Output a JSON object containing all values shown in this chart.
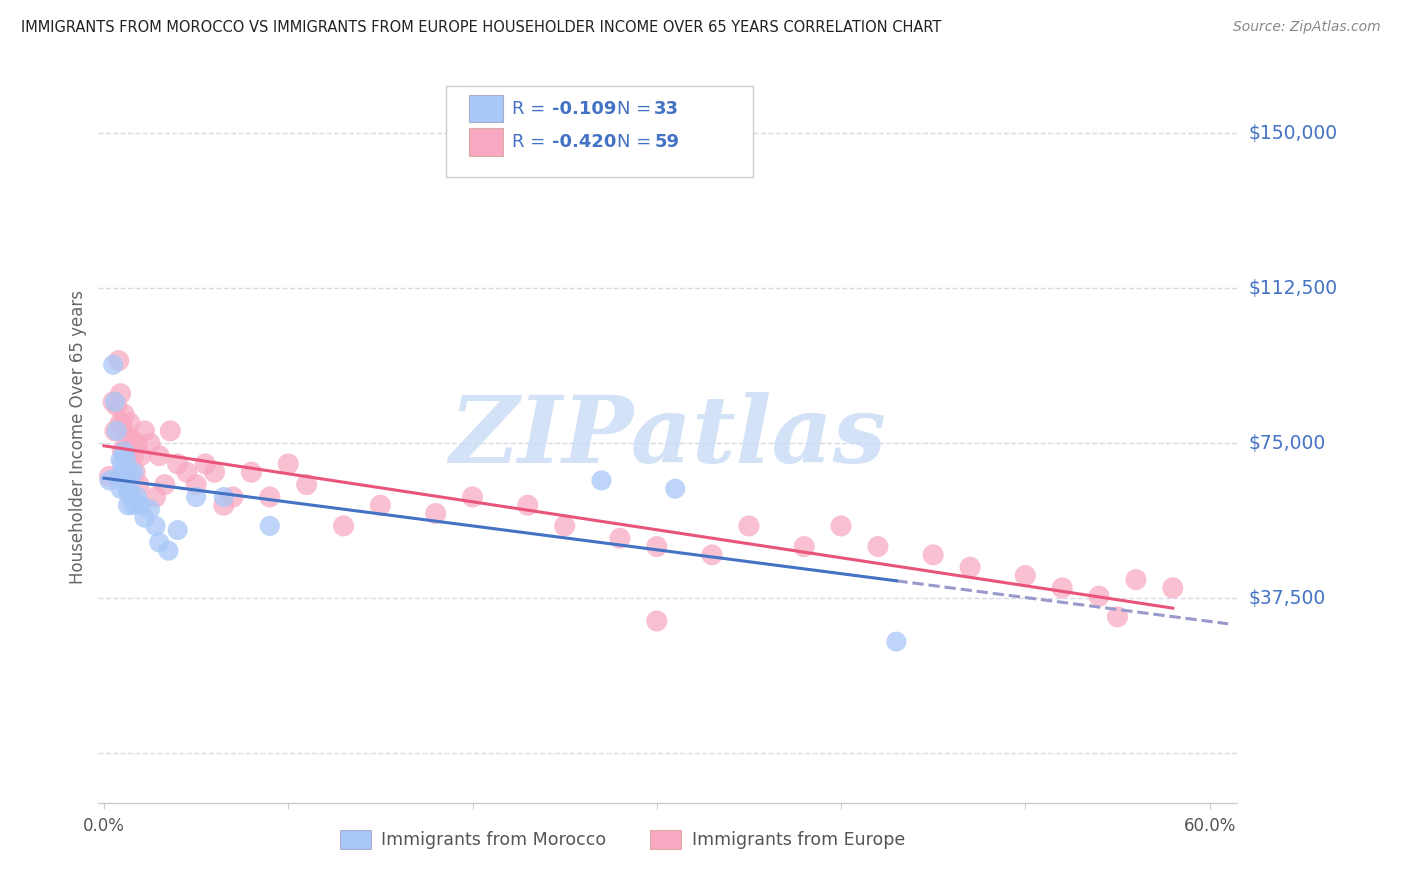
{
  "title": "IMMIGRANTS FROM MOROCCO VS IMMIGRANTS FROM EUROPE HOUSEHOLDER INCOME OVER 65 YEARS CORRELATION CHART",
  "source": "Source: ZipAtlas.com",
  "ylabel": "Householder Income Over 65 years",
  "xlim": [
    -0.003,
    0.615
  ],
  "ylim": [
    -12000,
    165000
  ],
  "yticks": [
    0,
    37500,
    75000,
    112500,
    150000
  ],
  "ytick_labels": [
    "",
    "$37,500",
    "$75,000",
    "$112,500",
    "$150,000"
  ],
  "xtick_positions": [
    0.0,
    0.1,
    0.2,
    0.3,
    0.4,
    0.5,
    0.6
  ],
  "xtick_labels": [
    "0.0%",
    "",
    "",
    "",
    "",
    "",
    "60.0%"
  ],
  "morocco_color": "#a8c8f8",
  "europe_color": "#f8a8c0",
  "morocco_R": -0.109,
  "morocco_N": 33,
  "europe_R": -0.42,
  "europe_N": 59,
  "watermark_text": "ZIPatlas",
  "background_color": "#ffffff",
  "grid_color": "#d8d8e8",
  "right_label_color": "#4472c4",
  "title_color": "#222222",
  "source_color": "#888888",
  "axis_label_color": "#666666",
  "morocco_line_color": "#4472c4",
  "europe_line_color": "#e8547a",
  "dashed_line_color": "#9999cc",
  "legend_text_color": "#4472c4",
  "morocco_x": [
    0.003,
    0.005,
    0.006,
    0.007,
    0.008,
    0.009,
    0.009,
    0.01,
    0.01,
    0.011,
    0.011,
    0.012,
    0.013,
    0.013,
    0.014,
    0.014,
    0.015,
    0.016,
    0.016,
    0.018,
    0.02,
    0.022,
    0.025,
    0.028,
    0.03,
    0.035,
    0.04,
    0.05,
    0.065,
    0.09,
    0.27,
    0.31,
    0.43
  ],
  "morocco_y": [
    66000,
    94000,
    85000,
    78000,
    67000,
    64000,
    71000,
    70000,
    66000,
    73000,
    68000,
    71000,
    63000,
    60000,
    68000,
    65000,
    62000,
    68000,
    60000,
    62000,
    60000,
    57000,
    59000,
    55000,
    51000,
    49000,
    54000,
    62000,
    62000,
    55000,
    66000,
    64000,
    27000
  ],
  "europe_x": [
    0.003,
    0.005,
    0.006,
    0.007,
    0.008,
    0.009,
    0.009,
    0.01,
    0.01,
    0.011,
    0.012,
    0.012,
    0.013,
    0.014,
    0.015,
    0.016,
    0.017,
    0.018,
    0.019,
    0.02,
    0.022,
    0.025,
    0.028,
    0.03,
    0.033,
    0.036,
    0.04,
    0.045,
    0.05,
    0.055,
    0.06,
    0.065,
    0.07,
    0.08,
    0.09,
    0.1,
    0.11,
    0.13,
    0.15,
    0.18,
    0.2,
    0.23,
    0.25,
    0.28,
    0.3,
    0.33,
    0.35,
    0.38,
    0.4,
    0.42,
    0.45,
    0.47,
    0.5,
    0.52,
    0.54,
    0.56,
    0.58,
    0.3,
    0.55
  ],
  "europe_y": [
    67000,
    85000,
    78000,
    84000,
    95000,
    80000,
    87000,
    73000,
    79000,
    82000,
    76000,
    72000,
    68000,
    80000,
    76000,
    72000,
    68000,
    75000,
    65000,
    72000,
    78000,
    75000,
    62000,
    72000,
    65000,
    78000,
    70000,
    68000,
    65000,
    70000,
    68000,
    60000,
    62000,
    68000,
    62000,
    70000,
    65000,
    55000,
    60000,
    58000,
    62000,
    60000,
    55000,
    52000,
    50000,
    48000,
    55000,
    50000,
    55000,
    50000,
    48000,
    45000,
    43000,
    40000,
    38000,
    42000,
    40000,
    32000,
    33000
  ]
}
